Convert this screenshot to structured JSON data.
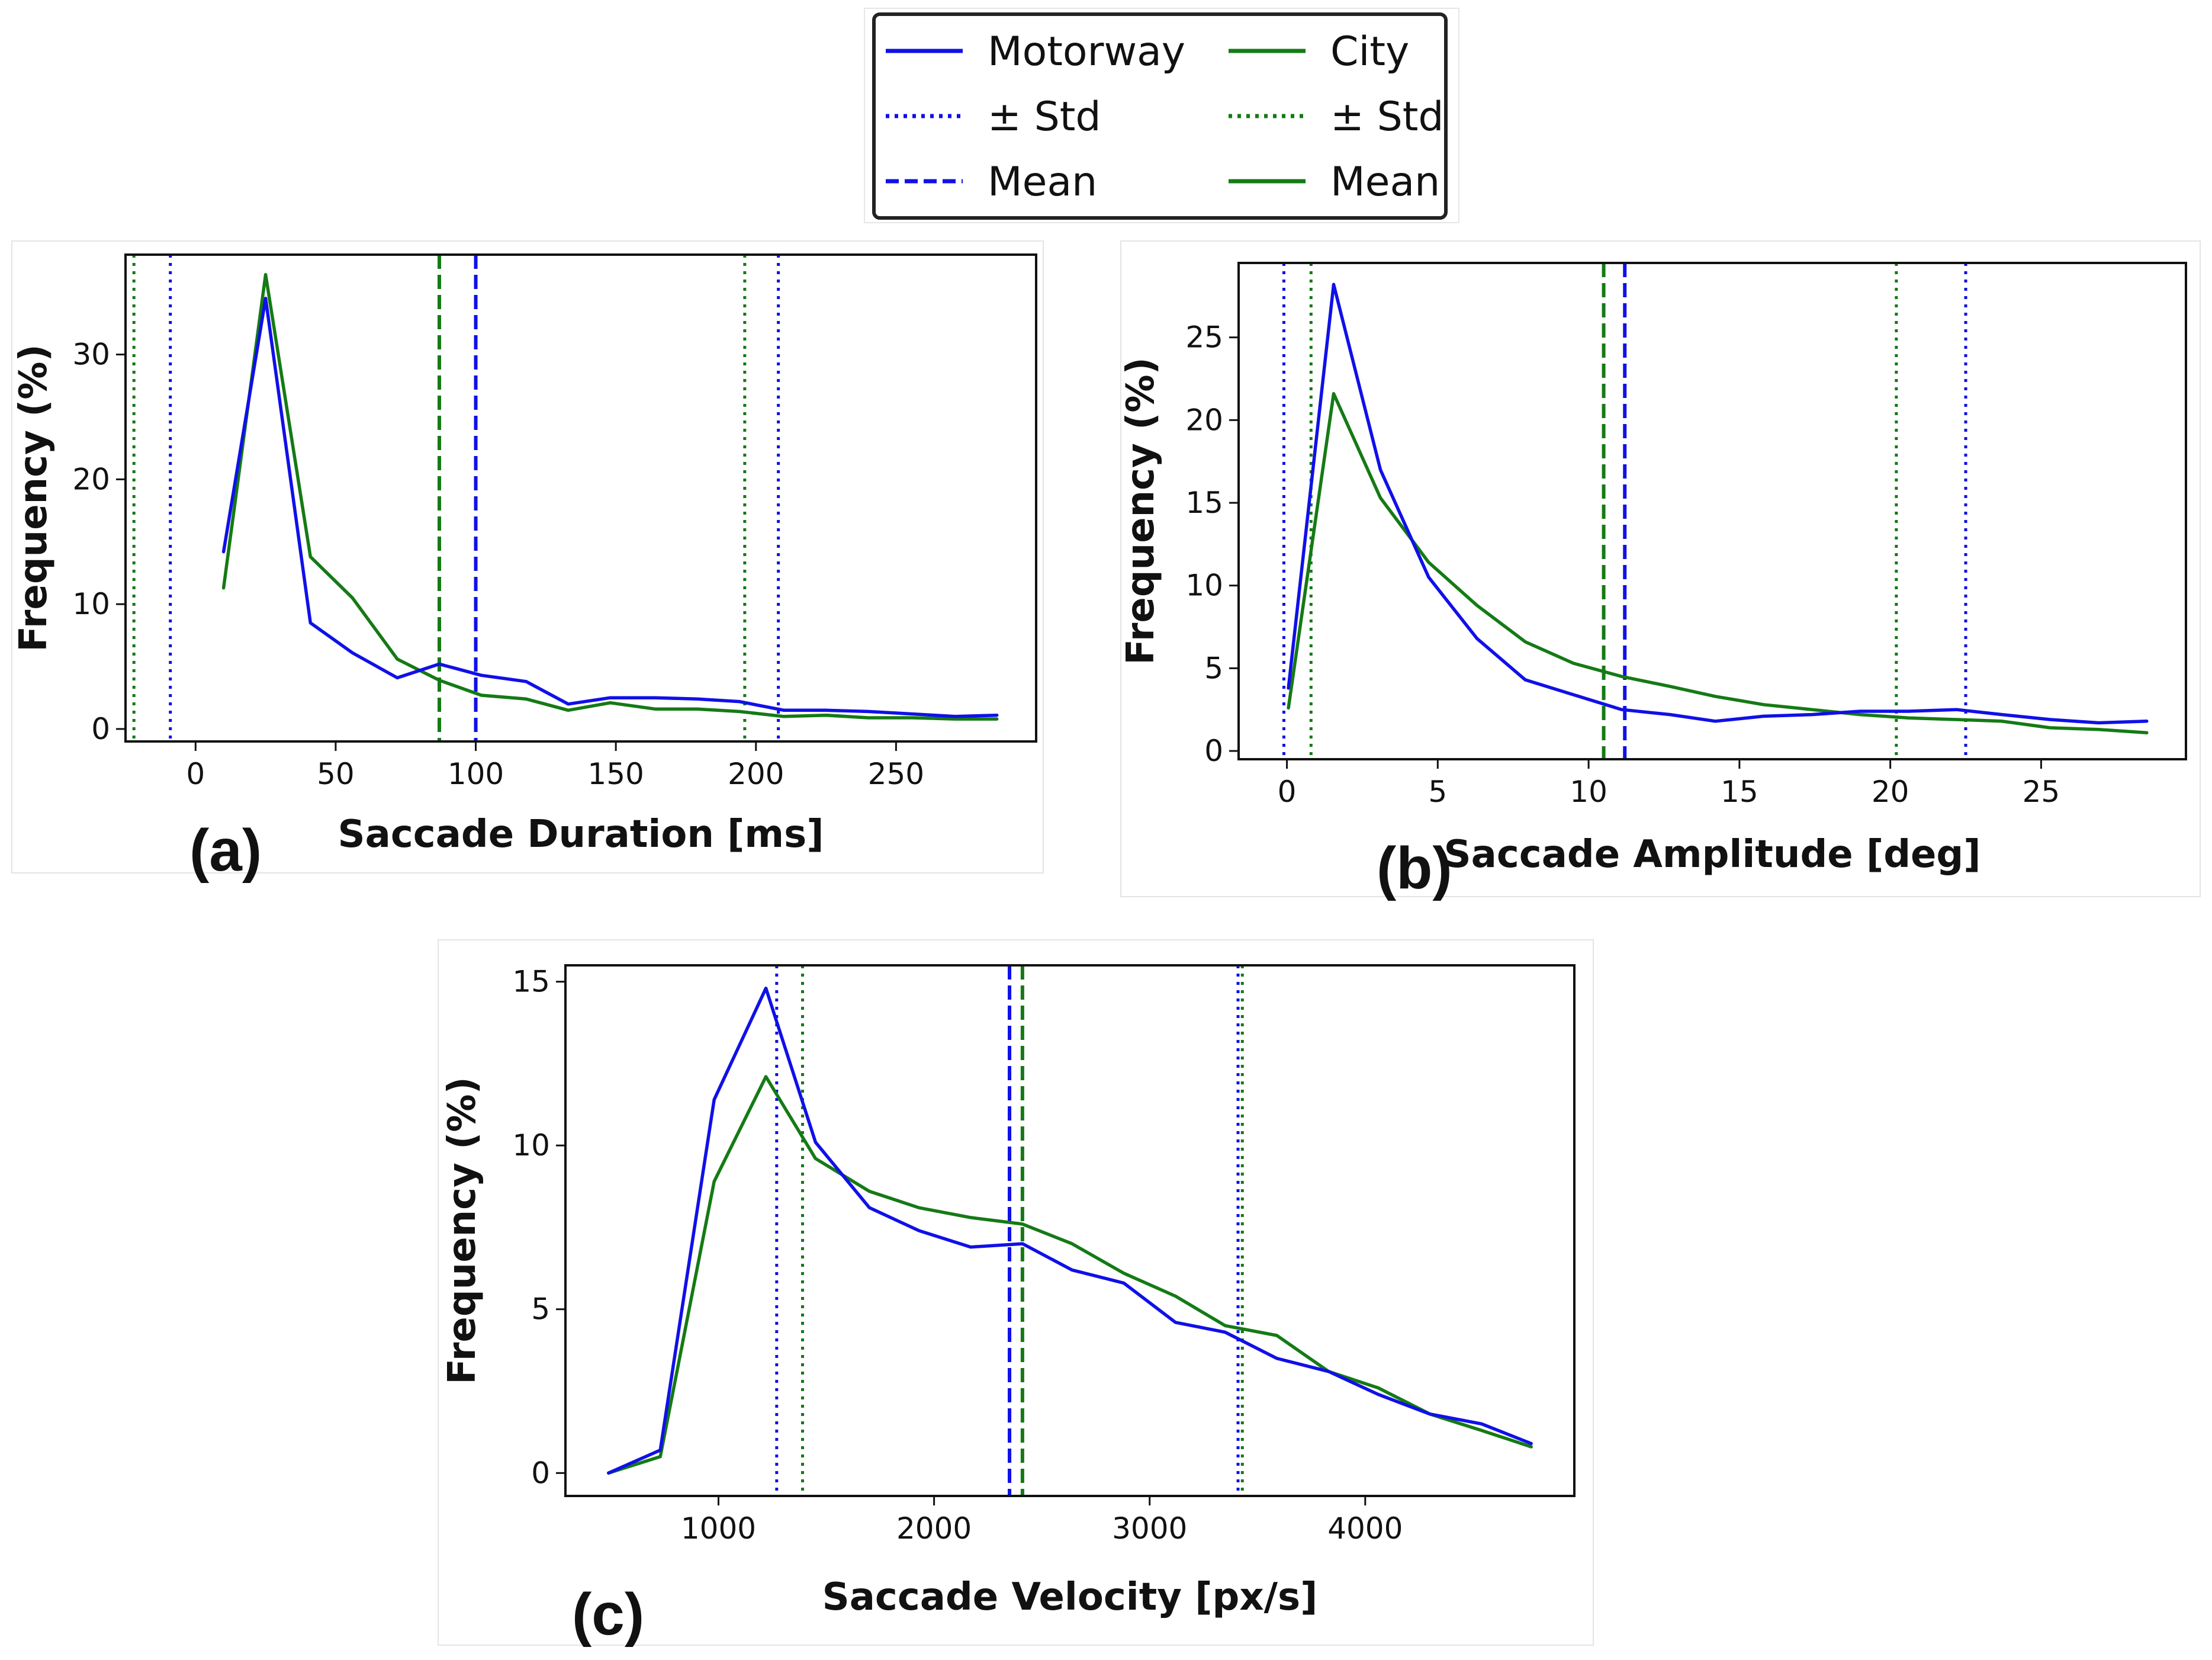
{
  "colors": {
    "motorway": "#1010e8",
    "city": "#157a15"
  },
  "legend": {
    "placement": "top-center",
    "entries": [
      {
        "label": "Motorway",
        "color": "#1010e8",
        "style": "solid"
      },
      {
        "label": "± Std",
        "color": "#1010e8",
        "style": "dotted"
      },
      {
        "label": "Mean",
        "color": "#1010e8",
        "style": "dashed"
      },
      {
        "label": "City",
        "color": "#157a15",
        "style": "solid"
      },
      {
        "label": "± Std",
        "color": "#157a15",
        "style": "dotted"
      },
      {
        "label": "Mean",
        "color": "#157a15",
        "style": "solid"
      }
    ]
  },
  "chart_data": [
    {
      "type": "line",
      "panel": "(a)",
      "title": "",
      "xlabel": "Saccade Duration [ms]",
      "ylabel": "Frequency (%)",
      "xlim": [
        -25,
        300
      ],
      "ylim": [
        -1,
        38
      ],
      "xticks": [
        0,
        50,
        100,
        150,
        200,
        250
      ],
      "yticks": [
        0,
        10,
        20,
        30
      ],
      "grid": false,
      "series": [
        {
          "name": "Motorway",
          "color": "#1010e8",
          "x": [
            10,
            25,
            41,
            56,
            72,
            87,
            102,
            118,
            133,
            148,
            164,
            179,
            194,
            210,
            225,
            240,
            256,
            271,
            286
          ],
          "y": [
            14.2,
            34.5,
            8.5,
            6.1,
            4.1,
            5.2,
            4.3,
            3.8,
            2.0,
            2.5,
            2.5,
            2.4,
            2.2,
            1.5,
            1.5,
            1.4,
            1.2,
            1.0,
            1.1
          ]
        },
        {
          "name": "City",
          "color": "#157a15",
          "x": [
            10,
            25,
            41,
            56,
            72,
            87,
            102,
            118,
            133,
            148,
            164,
            179,
            194,
            210,
            225,
            240,
            256,
            271,
            286
          ],
          "y": [
            11.3,
            36.4,
            13.8,
            10.5,
            5.6,
            3.9,
            2.7,
            2.4,
            1.5,
            2.1,
            1.6,
            1.6,
            1.4,
            1.0,
            1.1,
            0.9,
            0.9,
            0.8,
            0.8
          ]
        }
      ],
      "vlines": [
        {
          "series": "Motorway",
          "kind": "mean",
          "x": 100
        },
        {
          "series": "Motorway",
          "kind": "std",
          "x": -9
        },
        {
          "series": "Motorway",
          "kind": "std",
          "x": 208
        },
        {
          "series": "City",
          "kind": "mean",
          "x": 87
        },
        {
          "series": "City",
          "kind": "std",
          "x": -22
        },
        {
          "series": "City",
          "kind": "std",
          "x": 196
        }
      ]
    },
    {
      "type": "line",
      "panel": "(b)",
      "title": "",
      "xlabel": "Saccade Amplitude [deg]",
      "ylabel": "Frequency (%)",
      "xlim": [
        -1.6,
        29.8
      ],
      "ylim": [
        -0.5,
        29.5
      ],
      "xticks": [
        0,
        5,
        10,
        15,
        20,
        25
      ],
      "yticks": [
        0,
        5,
        10,
        15,
        20,
        25
      ],
      "grid": false,
      "series": [
        {
          "name": "Motorway",
          "color": "#1010e8",
          "x": [
            0.05,
            1.55,
            3.1,
            4.7,
            6.3,
            7.9,
            9.5,
            11.1,
            12.7,
            14.2,
            15.8,
            17.4,
            19.0,
            20.6,
            22.2,
            23.7,
            25.3,
            26.9,
            28.5
          ],
          "y": [
            3.8,
            28.2,
            17.0,
            10.5,
            6.8,
            4.3,
            3.4,
            2.5,
            2.2,
            1.8,
            2.1,
            2.2,
            2.4,
            2.4,
            2.5,
            2.2,
            1.9,
            1.7,
            1.8
          ]
        },
        {
          "name": "City",
          "color": "#157a15",
          "x": [
            0.05,
            1.55,
            3.1,
            4.7,
            6.3,
            7.9,
            9.5,
            11.1,
            12.7,
            14.2,
            15.8,
            17.4,
            19.0,
            20.6,
            22.2,
            23.7,
            25.3,
            26.9,
            28.5
          ],
          "y": [
            2.6,
            21.6,
            15.3,
            11.4,
            8.8,
            6.6,
            5.3,
            4.5,
            3.9,
            3.3,
            2.8,
            2.5,
            2.2,
            2.0,
            1.9,
            1.8,
            1.4,
            1.3,
            1.1
          ]
        }
      ],
      "vlines": [
        {
          "series": "Motorway",
          "kind": "mean",
          "x": 11.2
        },
        {
          "series": "Motorway",
          "kind": "std",
          "x": -0.1
        },
        {
          "series": "Motorway",
          "kind": "std",
          "x": 22.5
        },
        {
          "series": "City",
          "kind": "mean",
          "x": 10.5
        },
        {
          "series": "City",
          "kind": "std",
          "x": 0.8
        },
        {
          "series": "City",
          "kind": "std",
          "x": 20.2
        }
      ]
    },
    {
      "type": "line",
      "panel": "(c)",
      "title": "",
      "xlabel": "Saccade Velocity [px/s]",
      "ylabel": "Frequency (%)",
      "xlim": [
        290,
        4970
      ],
      "ylim": [
        -0.7,
        15.5
      ],
      "xticks": [
        1000,
        2000,
        3000,
        4000
      ],
      "yticks": [
        0,
        5,
        10,
        15
      ],
      "grid": false,
      "series": [
        {
          "name": "Motorway",
          "color": "#1010e8",
          "x": [
            490,
            730,
            980,
            1220,
            1450,
            1700,
            1930,
            2170,
            2410,
            2640,
            2880,
            3120,
            3350,
            3590,
            3830,
            4060,
            4300,
            4540,
            4770
          ],
          "y": [
            0.0,
            0.7,
            11.4,
            14.8,
            10.1,
            8.1,
            7.4,
            6.9,
            7.0,
            6.2,
            5.8,
            4.6,
            4.3,
            3.5,
            3.1,
            2.4,
            1.8,
            1.5,
            0.9
          ]
        },
        {
          "name": "City",
          "color": "#157a15",
          "x": [
            490,
            730,
            980,
            1220,
            1450,
            1700,
            1930,
            2170,
            2410,
            2640,
            2880,
            3120,
            3350,
            3590,
            3830,
            4060,
            4300,
            4540,
            4770
          ],
          "y": [
            0.0,
            0.5,
            8.9,
            12.1,
            9.6,
            8.6,
            8.1,
            7.8,
            7.6,
            7.0,
            6.1,
            5.4,
            4.5,
            4.2,
            3.1,
            2.6,
            1.8,
            1.3,
            0.8
          ]
        }
      ],
      "vlines": [
        {
          "series": "Motorway",
          "kind": "mean",
          "x": 2350
        },
        {
          "series": "Motorway",
          "kind": "std",
          "x": 1270
        },
        {
          "series": "Motorway",
          "kind": "std",
          "x": 3410
        },
        {
          "series": "City",
          "kind": "mean",
          "x": 2410
        },
        {
          "series": "City",
          "kind": "std",
          "x": 1390
        },
        {
          "series": "City",
          "kind": "std",
          "x": 3430
        }
      ]
    }
  ]
}
